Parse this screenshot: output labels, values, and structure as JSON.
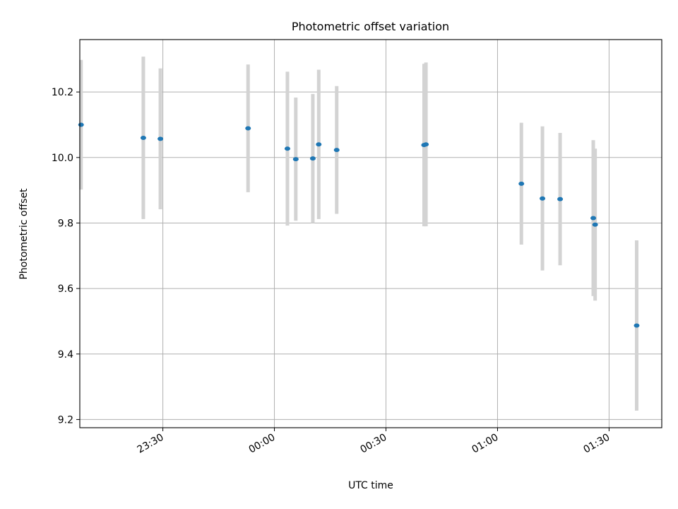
{
  "chart_data": {
    "type": "scatter",
    "title": "Photometric offset variation",
    "xlabel": "UTC time",
    "ylabel": "Photometric offset",
    "xlim": [
      "23:07:40",
      "01:44:10"
    ],
    "ylim": [
      9.175,
      10.36
    ],
    "x_ticks": [
      "23:30",
      "00:00",
      "00:30",
      "01:00",
      "01:30"
    ],
    "y_ticks": [
      9.2,
      9.4,
      9.6,
      9.8,
      10.0,
      10.2
    ],
    "grid": true,
    "marker_color": "#1f77b4",
    "errorbar_color": "#d3d3d3",
    "points": [
      {
        "time": "23:08:00",
        "value": 10.1,
        "yerr": 0.198
      },
      {
        "time": "23:24:45",
        "value": 10.06,
        "yerr": 0.248
      },
      {
        "time": "23:29:20",
        "value": 10.057,
        "yerr": 0.215
      },
      {
        "time": "23:52:55",
        "value": 10.089,
        "yerr": 0.195
      },
      {
        "time": "00:03:30",
        "value": 10.027,
        "yerr": 0.235
      },
      {
        "time": "00:05:45",
        "value": 9.995,
        "yerr": 0.188
      },
      {
        "time": "00:10:20",
        "value": 9.997,
        "yerr": 0.197
      },
      {
        "time": "00:11:55",
        "value": 10.04,
        "yerr": 0.228
      },
      {
        "time": "00:16:45",
        "value": 10.023,
        "yerr": 0.195
      },
      {
        "time": "00:40:15",
        "value": 10.038,
        "yerr": 0.248
      },
      {
        "time": "00:40:45",
        "value": 10.04,
        "yerr": 0.25
      },
      {
        "time": "01:06:25",
        "value": 9.92,
        "yerr": 0.186
      },
      {
        "time": "01:12:05",
        "value": 9.875,
        "yerr": 0.22
      },
      {
        "time": "01:16:50",
        "value": 9.873,
        "yerr": 0.202
      },
      {
        "time": "01:25:45",
        "value": 9.815,
        "yerr": 0.238
      },
      {
        "time": "01:26:15",
        "value": 9.795,
        "yerr": 0.232
      },
      {
        "time": "01:37:25",
        "value": 9.487,
        "yerr": 0.26
      }
    ]
  }
}
